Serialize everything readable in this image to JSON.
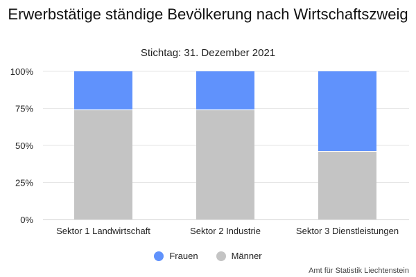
{
  "chart_data": {
    "type": "bar",
    "stacked": true,
    "title": "Erwerbstätige ständige Bevölkerung nach Wirtschaftszweig",
    "subtitle": "Stichtag: 31. Dezember 2021",
    "categories": [
      "Sektor 1 Landwirtschaft",
      "Sektor 2 Industrie",
      "Sektor 3 Dienstleistungen"
    ],
    "series": [
      {
        "name": "Männer",
        "color": "#c4c4c4",
        "values": [
          74,
          74,
          46
        ]
      },
      {
        "name": "Frauen",
        "color": "#6092fc",
        "values": [
          26,
          26,
          54
        ]
      }
    ],
    "ylim": [
      0,
      100
    ],
    "yticks": [
      0,
      25,
      50,
      75,
      100
    ],
    "ytick_labels": [
      "0%",
      "25%",
      "50%",
      "75%",
      "100%"
    ],
    "grid": true,
    "legend_position": "bottom",
    "legend_order": [
      "Frauen",
      "Männer"
    ],
    "source": "Amt für Statistik Liechtenstein"
  }
}
